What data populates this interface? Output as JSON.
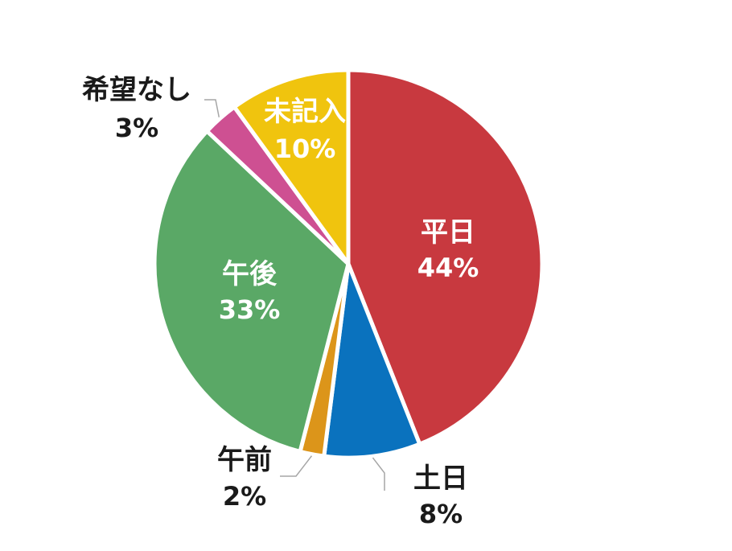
{
  "chart_data": {
    "type": "pie",
    "title": "",
    "start": "12 o'clock",
    "direction": "clockwise",
    "slices": [
      {
        "label": "平日",
        "value": 44,
        "value_label": "44%",
        "color": "#C8393F",
        "label_position": "inside"
      },
      {
        "label": "土日",
        "value": 8,
        "value_label": "8%",
        "color": "#0A72BE",
        "label_position": "outside"
      },
      {
        "label": "午前",
        "value": 2,
        "value_label": "2%",
        "color": "#DC951A",
        "label_position": "outside"
      },
      {
        "label": "午後",
        "value": 33,
        "value_label": "33%",
        "color": "#5AA866",
        "label_position": "inside"
      },
      {
        "label": "希望なし",
        "value": 3,
        "value_label": "3%",
        "color": "#CE5092",
        "label_position": "outside"
      },
      {
        "label": "未記入",
        "value": 10,
        "value_label": "10%",
        "color": "#F0C40E",
        "label_position": "inside"
      }
    ]
  }
}
